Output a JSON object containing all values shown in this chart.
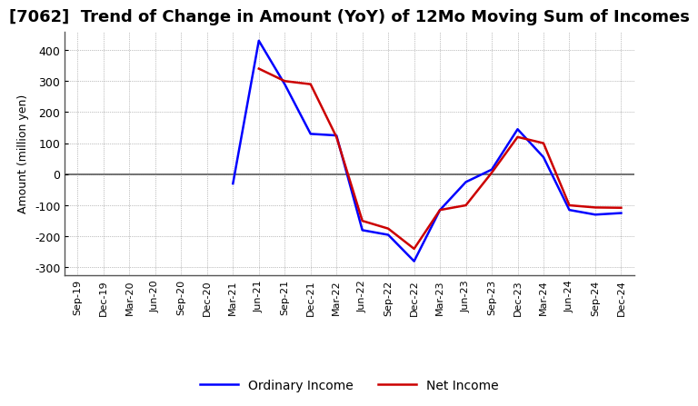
{
  "title": "[7062]  Trend of Change in Amount (YoY) of 12Mo Moving Sum of Incomes",
  "ylabel": "Amount (million yen)",
  "x_labels": [
    "Sep-19",
    "Dec-19",
    "Mar-20",
    "Jun-20",
    "Sep-20",
    "Dec-20",
    "Mar-21",
    "Jun-21",
    "Sep-21",
    "Dec-21",
    "Mar-22",
    "Jun-22",
    "Sep-22",
    "Dec-22",
    "Mar-23",
    "Jun-23",
    "Sep-23",
    "Dec-23",
    "Mar-24",
    "Jun-24",
    "Sep-24",
    "Dec-24"
  ],
  "ordinary_income": [
    null,
    null,
    null,
    null,
    null,
    null,
    -30,
    430,
    290,
    130,
    125,
    -180,
    -195,
    -280,
    -115,
    -25,
    15,
    145,
    55,
    -115,
    -130,
    -125
  ],
  "net_income": [
    null,
    null,
    null,
    null,
    null,
    null,
    null,
    340,
    300,
    290,
    120,
    -150,
    -175,
    -240,
    -115,
    -100,
    5,
    120,
    100,
    -100,
    -107,
    -108
  ],
  "ordinary_color": "#0000ff",
  "net_color": "#cc0000",
  "ylim": [
    -325,
    460
  ],
  "yticks": [
    -300,
    -200,
    -100,
    0,
    100,
    200,
    300,
    400
  ],
  "background_color": "#ffffff",
  "grid_color": "#888888",
  "zero_line_color": "#555555",
  "title_fontsize": 13,
  "axis_fontsize": 8,
  "ylabel_fontsize": 9,
  "legend_fontsize": 10
}
